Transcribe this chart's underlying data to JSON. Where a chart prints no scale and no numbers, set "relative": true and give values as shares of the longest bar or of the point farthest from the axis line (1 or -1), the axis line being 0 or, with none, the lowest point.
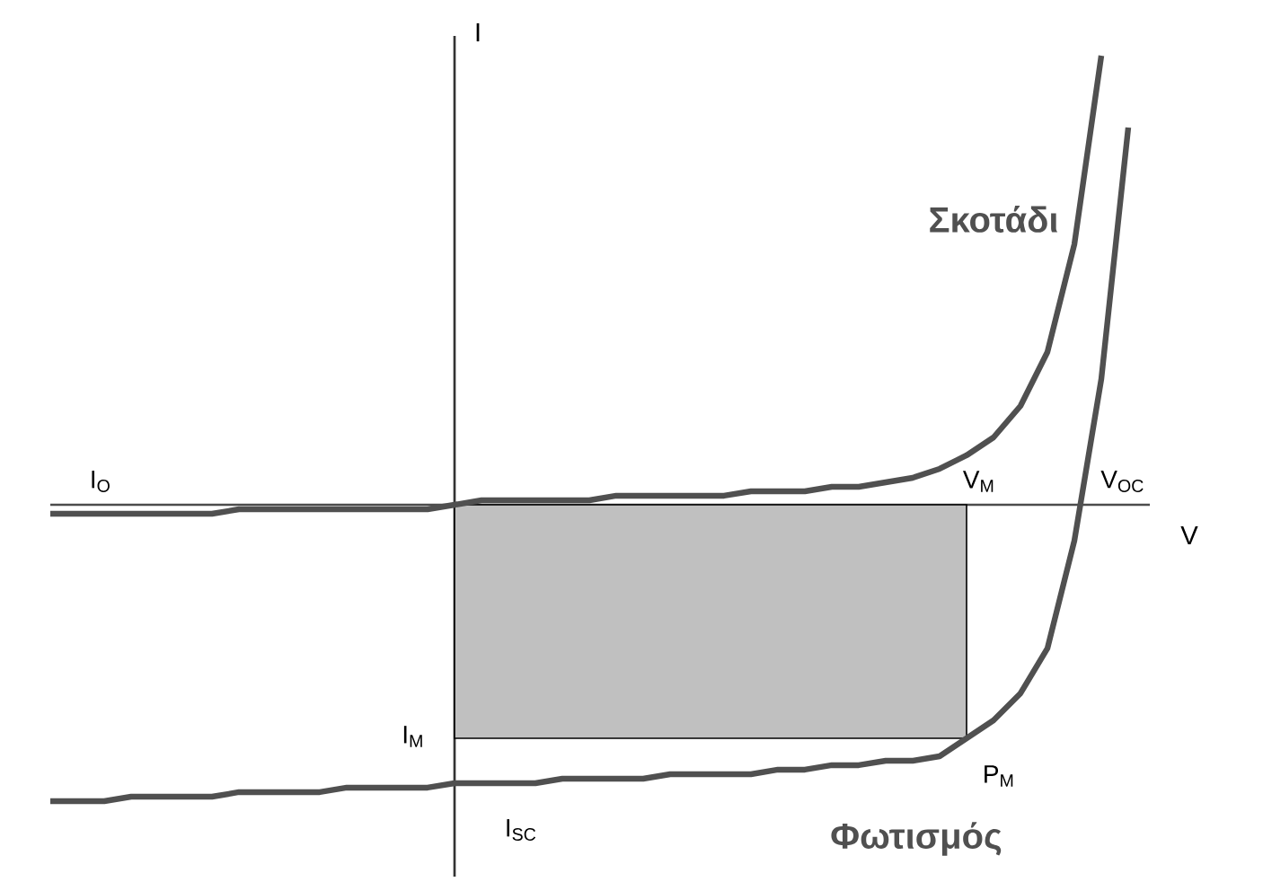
{
  "chart_data": {
    "type": "line",
    "relative": true,
    "xlabel": "V",
    "ylabel": "I",
    "categories": [
      null,
      null,
      null,
      null,
      null,
      null,
      null,
      null,
      null,
      null,
      null,
      null,
      null,
      null,
      null,
      null,
      null,
      null,
      null,
      null,
      null,
      null,
      null,
      null,
      null,
      null,
      null,
      null,
      null,
      null,
      null,
      null,
      null,
      null,
      null,
      null,
      null,
      null,
      null,
      null,
      null
    ],
    "series": [
      {
        "type": "area",
        "color": "#c0c0c0",
        "values": [
          null,
          null,
          null,
          null,
          null,
          null,
          null,
          null,
          null,
          null,
          null,
          null,
          null,
          null,
          null,
          -0.52,
          -0.52,
          -0.52,
          -0.52,
          -0.52,
          -0.52,
          -0.52,
          -0.52,
          -0.52,
          -0.52,
          -0.52,
          -0.52,
          -0.52,
          -0.52,
          -0.52,
          -0.52,
          -0.52,
          -0.52,
          -0.52,
          -0.52,
          null,
          null,
          null,
          null,
          null,
          null
        ]
      },
      {
        "name": "Σκοτάδι",
        "color": "#505050",
        "values": [
          -0.02,
          -0.02,
          -0.02,
          -0.02,
          -0.02,
          -0.02,
          -0.02,
          -0.01,
          -0.01,
          -0.01,
          -0.01,
          -0.01,
          -0.01,
          -0.01,
          -0.01,
          0,
          0.01,
          0.01,
          0.01,
          0.01,
          0.01,
          0.02,
          0.02,
          0.02,
          0.02,
          0.02,
          0.03,
          0.03,
          0.03,
          0.04,
          0.04,
          0.05,
          0.06,
          0.08,
          0.11,
          0.15,
          0.22,
          0.34,
          0.58,
          1,
          null
        ]
      },
      {
        "name": "Φωτισμός",
        "color": "#505050",
        "values": [
          -0.66,
          -0.66,
          -0.66,
          -0.65,
          -0.65,
          -0.65,
          -0.65,
          -0.64,
          -0.64,
          -0.64,
          -0.64,
          -0.63,
          -0.63,
          -0.63,
          -0.63,
          -0.62,
          -0.62,
          -0.62,
          -0.62,
          -0.61,
          -0.61,
          -0.61,
          -0.61,
          -0.6,
          -0.6,
          -0.6,
          -0.6,
          -0.59,
          -0.59,
          -0.58,
          -0.58,
          -0.57,
          -0.57,
          -0.56,
          -0.52,
          -0.48,
          -0.42,
          -0.32,
          -0.08,
          0.28,
          0.84
        ]
      }
    ],
    "annotations": [
      "I$_{O}$",
      "V$_{M}$",
      "V$_{OC}$",
      "I$_{SC}$",
      "I$_{M}$",
      "P$_{M}$"
    ],
    "legend": false
  }
}
